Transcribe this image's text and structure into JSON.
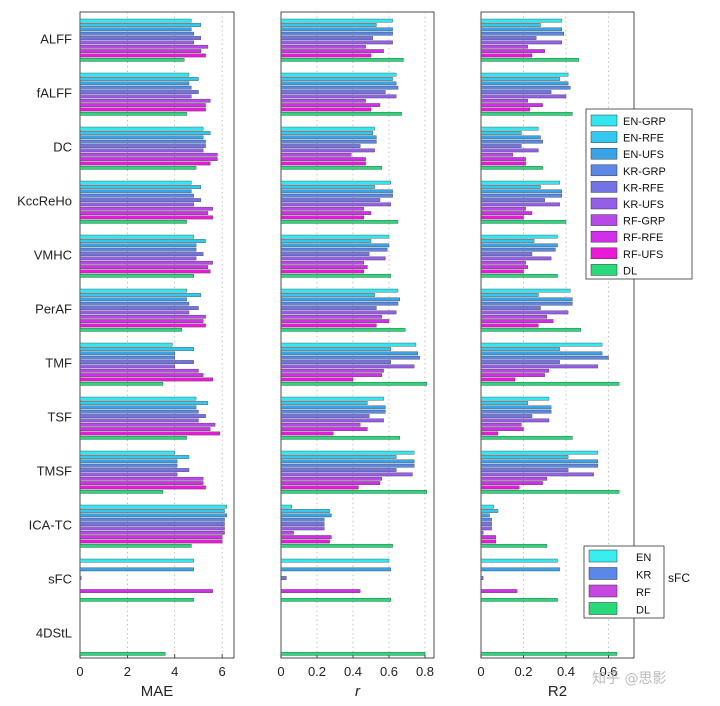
{
  "chart_data": {
    "type": "bar",
    "orientation": "horizontal",
    "categories": [
      "ALFF",
      "fALFF",
      "DC",
      "KccReHo",
      "VMHC",
      "PerAF",
      "TMF",
      "TSF",
      "TMSF",
      "ICA-TC",
      "sFC",
      "4DStL"
    ],
    "panels": [
      {
        "key": "mae",
        "xlabel": "MAE",
        "italic": false,
        "xlim": [
          0,
          6.5
        ],
        "ticks": [
          0,
          2,
          4,
          6
        ],
        "tick_labels": [
          "0",
          "2",
          "4",
          "6"
        ],
        "series": [
          {
            "name": "EN-GRP",
            "values": [
              4.7,
              4.6,
              5.2,
              4.7,
              4.8,
              4.5,
              3.9,
              4.9,
              4.0,
              6.2,
              4.8,
              null
            ]
          },
          {
            "name": "EN-RFE",
            "values": [
              5.1,
              5.0,
              5.5,
              5.1,
              5.3,
              5.1,
              4.8,
              5.4,
              4.6,
              6.1,
              null,
              null
            ]
          },
          {
            "name": "EN-UFS",
            "values": [
              4.7,
              4.6,
              5.2,
              4.7,
              4.9,
              4.5,
              4.0,
              4.9,
              4.1,
              6.2,
              4.8,
              null
            ]
          },
          {
            "name": "KR-GRP",
            "values": [
              4.8,
              4.7,
              5.3,
              4.8,
              4.9,
              4.6,
              4.0,
              5.0,
              4.1,
              6.1,
              null,
              null
            ]
          },
          {
            "name": "KR-RFE",
            "values": [
              5.1,
              5.0,
              5.3,
              5.1,
              5.2,
              5.0,
              4.8,
              5.3,
              4.6,
              6.1,
              0.05,
              null
            ]
          },
          {
            "name": "KR-UFS",
            "values": [
              4.8,
              4.7,
              5.2,
              4.8,
              4.9,
              4.6,
              4.0,
              5.0,
              4.1,
              6.1,
              null,
              null
            ]
          },
          {
            "name": "RF-GRP",
            "values": [
              5.4,
              5.5,
              5.8,
              5.6,
              5.6,
              5.3,
              5.0,
              5.7,
              5.2,
              6.1,
              null,
              null
            ]
          },
          {
            "name": "RF-RFE",
            "values": [
              5.1,
              5.3,
              5.8,
              5.4,
              5.4,
              5.2,
              5.2,
              5.5,
              5.2,
              6.0,
              5.6,
              null
            ]
          },
          {
            "name": "RF-UFS",
            "values": [
              5.3,
              5.3,
              5.5,
              5.6,
              5.5,
              5.3,
              5.6,
              5.9,
              5.3,
              6.0,
              null,
              null
            ]
          },
          {
            "name": "DL",
            "values": [
              4.4,
              4.5,
              4.9,
              4.5,
              4.8,
              4.3,
              3.5,
              4.5,
              3.5,
              4.7,
              4.8,
              3.6
            ]
          }
        ]
      },
      {
        "key": "r",
        "xlabel": "r",
        "italic": true,
        "xlim": [
          0,
          0.85
        ],
        "ticks": [
          0,
          0.2,
          0.4,
          0.6,
          0.8
        ],
        "tick_labels": [
          "0",
          "0.2",
          "0.4",
          "0.6",
          "0.8"
        ],
        "series": [
          {
            "name": "EN-GRP",
            "values": [
              0.62,
              0.64,
              0.52,
              0.61,
              0.6,
              0.65,
              0.75,
              0.57,
              0.74,
              0.06,
              0.6,
              null
            ]
          },
          {
            "name": "EN-RFE",
            "values": [
              0.53,
              0.62,
              0.51,
              0.52,
              0.5,
              0.52,
              0.61,
              0.48,
              0.64,
              0.27,
              null,
              null
            ]
          },
          {
            "name": "EN-UFS",
            "values": [
              0.62,
              0.64,
              0.53,
              0.62,
              0.6,
              0.66,
              0.76,
              0.58,
              0.74,
              0.28,
              0.61,
              null
            ]
          },
          {
            "name": "KR-GRP",
            "values": [
              0.62,
              0.65,
              0.53,
              0.62,
              0.59,
              0.65,
              0.77,
              0.58,
              0.74,
              0.24,
              null,
              null
            ]
          },
          {
            "name": "KR-RFE",
            "values": [
              0.51,
              0.58,
              0.44,
              0.55,
              0.49,
              0.53,
              0.61,
              0.49,
              0.64,
              0.24,
              0.03,
              null
            ]
          },
          {
            "name": "KR-UFS",
            "values": [
              0.62,
              0.64,
              0.52,
              0.61,
              0.58,
              0.64,
              0.74,
              0.57,
              0.73,
              0.24,
              null,
              null
            ]
          },
          {
            "name": "RF-GRP",
            "values": [
              0.47,
              0.47,
              0.39,
              0.46,
              0.46,
              0.56,
              0.57,
              0.44,
              0.56,
              0.07,
              null,
              null
            ]
          },
          {
            "name": "RF-RFE",
            "values": [
              0.57,
              0.55,
              0.47,
              0.5,
              0.48,
              0.6,
              0.56,
              0.48,
              0.55,
              0.28,
              0.44,
              null
            ]
          },
          {
            "name": "RF-UFS",
            "values": [
              0.5,
              0.5,
              0.47,
              0.46,
              0.46,
              0.53,
              0.4,
              0.29,
              0.43,
              0.27,
              null,
              null
            ]
          },
          {
            "name": "DL",
            "values": [
              0.68,
              0.67,
              0.56,
              0.65,
              0.61,
              0.69,
              0.81,
              0.66,
              0.81,
              0.62,
              0.61,
              0.8
            ]
          }
        ]
      },
      {
        "key": "r2",
        "xlabel": "R2",
        "italic": false,
        "xlim": [
          0,
          0.72
        ],
        "ticks": [
          0,
          0.2,
          0.4,
          0.6
        ],
        "tick_labels": [
          "0",
          "0.2",
          "0.4",
          "0.6"
        ],
        "series": [
          {
            "name": "EN-GRP",
            "values": [
              0.38,
              0.41,
              0.27,
              0.37,
              0.36,
              0.42,
              0.57,
              0.32,
              0.55,
              0.06,
              0.36,
              null
            ]
          },
          {
            "name": "EN-RFE",
            "values": [
              0.28,
              0.37,
              0.19,
              0.28,
              0.25,
              0.27,
              0.37,
              0.22,
              0.41,
              0.08,
              null,
              null
            ]
          },
          {
            "name": "EN-UFS",
            "values": [
              0.38,
              0.41,
              0.28,
              0.38,
              0.36,
              0.43,
              0.57,
              0.33,
              0.55,
              0.04,
              0.37,
              null
            ]
          },
          {
            "name": "KR-GRP",
            "values": [
              0.39,
              0.42,
              0.29,
              0.38,
              0.35,
              0.43,
              0.6,
              0.33,
              0.55,
              0.05,
              null,
              null
            ]
          },
          {
            "name": "KR-RFE",
            "values": [
              0.26,
              0.33,
              0.19,
              0.3,
              0.24,
              0.28,
              0.37,
              0.24,
              0.41,
              0.05,
              0.01,
              null
            ]
          },
          {
            "name": "KR-UFS",
            "values": [
              0.38,
              0.4,
              0.27,
              0.37,
              0.33,
              0.41,
              0.55,
              0.32,
              0.53,
              0.05,
              null,
              null
            ]
          },
          {
            "name": "RF-GRP",
            "values": [
              0.22,
              0.22,
              0.15,
              0.21,
              0.21,
              0.31,
              0.32,
              0.19,
              0.31,
              0.01,
              null,
              null
            ]
          },
          {
            "name": "RF-RFE",
            "values": [
              0.3,
              0.29,
              0.21,
              0.24,
              0.22,
              0.34,
              0.3,
              0.2,
              0.29,
              0.07,
              0.17,
              null
            ]
          },
          {
            "name": "RF-UFS",
            "values": [
              0.24,
              0.23,
              0.21,
              0.2,
              0.2,
              0.27,
              0.16,
              0.08,
              0.18,
              0.07,
              null,
              null
            ]
          },
          {
            "name": "DL",
            "values": [
              0.46,
              0.43,
              0.29,
              0.4,
              0.36,
              0.47,
              0.65,
              0.43,
              0.65,
              0.31,
              0.36,
              0.64
            ]
          }
        ]
      }
    ]
  },
  "legend": {
    "main": [
      "EN-GRP",
      "EN-RFE",
      "EN-UFS",
      "KR-GRP",
      "KR-RFE",
      "KR-UFS",
      "RF-GRP",
      "RF-RFE",
      "RF-UFS",
      "DL"
    ],
    "sfc": [
      "EN",
      "KR",
      "RF",
      "DL"
    ],
    "sfc_label": "sFC"
  },
  "colors": {
    "EN-GRP": "#33e6ef",
    "EN-RFE": "#33c8ef",
    "EN-UFS": "#3aa3e8",
    "KR-GRP": "#5b87e6",
    "KR-RFE": "#7473e6",
    "KR-UFS": "#945ee8",
    "RF-GRP": "#b748ea",
    "RF-RFE": "#d22fec",
    "RF-UFS": "#e81ad8",
    "DL": "#27d97a",
    "EN": "#38eef0",
    "KR": "#5b87e6",
    "RF": "#c546e0"
  },
  "watermark": "知乎 @思影"
}
